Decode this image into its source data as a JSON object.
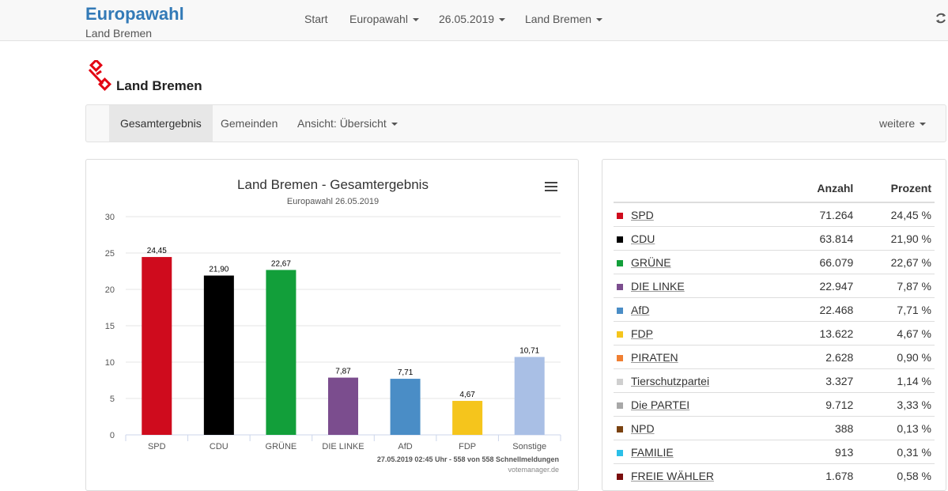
{
  "header": {
    "brand": "Europawahl",
    "brand_sub": "Land Bremen",
    "nav": [
      "Start",
      "Europawahl",
      "26.05.2019",
      "Land Bremen"
    ],
    "refresh_icon": "refresh-icon"
  },
  "logo": {
    "text": "Land Bremen",
    "icon": "bremen-key-icon",
    "color": "#e30613"
  },
  "subnav": {
    "items": [
      "Gesamtergebnis",
      "Gemeinden",
      "Ansicht: Übersicht"
    ],
    "more": "weitere"
  },
  "chart_data": {
    "type": "bar",
    "title": "Land Bremen - Gesamtergebnis",
    "subtitle": "Europawahl 26.05.2019",
    "categories": [
      "SPD",
      "CDU",
      "GRÜNE",
      "DIE LINKE",
      "AfD",
      "FDP",
      "Sonstige"
    ],
    "values": [
      24.45,
      21.9,
      22.67,
      7.87,
      7.71,
      4.67,
      10.71
    ],
    "labels": [
      "24,45",
      "21,90",
      "22,67",
      "7,87",
      "7,71",
      "4,67",
      "10,71"
    ],
    "colors": [
      "#cf0b1d",
      "#000000",
      "#129f3a",
      "#7b4d8e",
      "#4a8dc6",
      "#f5c51c",
      "#a9bfe5"
    ],
    "yticks": [
      "0",
      "5",
      "10",
      "15",
      "20",
      "25",
      "30"
    ],
    "ylim": [
      0,
      30
    ],
    "grid": true,
    "credits": "27.05.2019 02:45 Uhr - 558 von 558 Schnellmeldungen",
    "source": "votemanager.de"
  },
  "table": {
    "headers": {
      "anzahl": "Anzahl",
      "prozent": "Prozent"
    },
    "rows": [
      {
        "party": "SPD",
        "anzahl": "71.264",
        "prozent": "24,45 %",
        "color": "#cf0b1d"
      },
      {
        "party": "CDU",
        "anzahl": "63.814",
        "prozent": "21,90 %",
        "color": "#000000"
      },
      {
        "party": "GRÜNE",
        "anzahl": "66.079",
        "prozent": "22,67 %",
        "color": "#129f3a"
      },
      {
        "party": "DIE LINKE",
        "anzahl": "22.947",
        "prozent": "7,87 %",
        "color": "#7b4d8e"
      },
      {
        "party": "AfD",
        "anzahl": "22.468",
        "prozent": "7,71 %",
        "color": "#4a8dc6"
      },
      {
        "party": "FDP",
        "anzahl": "13.622",
        "prozent": "4,67 %",
        "color": "#f5c51c"
      },
      {
        "party": "PIRATEN",
        "anzahl": "2.628",
        "prozent": "0,90 %",
        "color": "#f07f32"
      },
      {
        "party": "Tierschutzpartei",
        "anzahl": "3.327",
        "prozent": "1,14 %",
        "color": "#cfcfcf"
      },
      {
        "party": "Die PARTEI",
        "anzahl": "9.712",
        "prozent": "3,33 %",
        "color": "#a8a8a8"
      },
      {
        "party": "NPD",
        "anzahl": "388",
        "prozent": "0,13 %",
        "color": "#7a4210"
      },
      {
        "party": "FAMILIE",
        "anzahl": "913",
        "prozent": "0,31 %",
        "color": "#2bbfe8"
      },
      {
        "party": "FREIE WÄHLER",
        "anzahl": "1.678",
        "prozent": "0,58 %",
        "color": "#7a0d0d"
      }
    ]
  }
}
